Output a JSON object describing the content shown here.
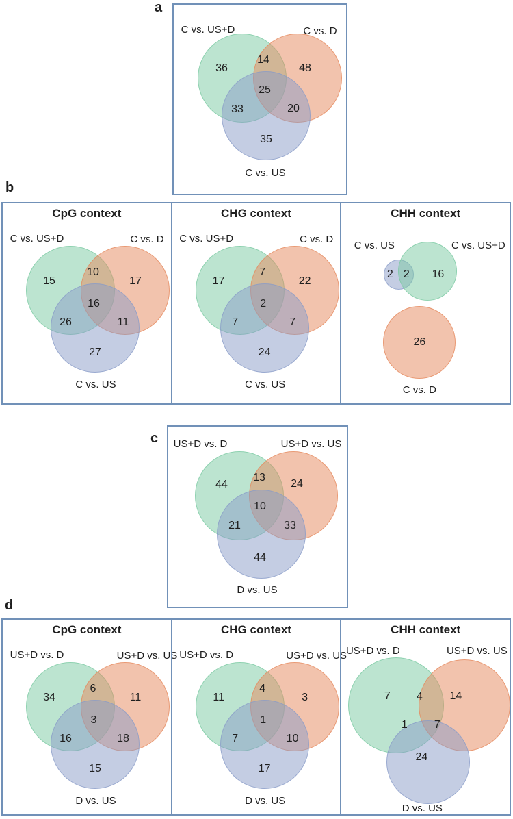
{
  "colors": {
    "green": "#79c9a1",
    "orange": "#e5875b",
    "blue": "#899bc7",
    "green_visible": "#bce4d0",
    "orange_visible": "#f2c3ad",
    "blue_visible": "#c4cde3",
    "panel_border": "#7191b8",
    "text": "#1f1f1f"
  },
  "panels": [
    {
      "tag": "a",
      "diagrams": [
        {
          "layout": "venn3_a",
          "title": "",
          "sets": [
            {
              "label": "C vs. US+D",
              "color": "green"
            },
            {
              "label": "C vs. D",
              "color": "orange"
            },
            {
              "label": "C vs. US",
              "color": "blue"
            }
          ],
          "counts": {
            "a": "36",
            "ab": "14",
            "b": "48",
            "abc": "25",
            "ac": "33",
            "bc": "20",
            "c": "35"
          }
        }
      ]
    },
    {
      "tag": "b",
      "diagrams": [
        {
          "layout": "venn3t",
          "title": "CpG context",
          "sets": [
            {
              "label": "C vs. US+D",
              "color": "green"
            },
            {
              "label": "C vs. D",
              "color": "orange"
            },
            {
              "label": "C vs. US",
              "color": "blue"
            }
          ],
          "counts": {
            "a": "15",
            "ab": "10",
            "b": "17",
            "abc": "16",
            "ac": "26",
            "bc": "11",
            "c": "27"
          }
        },
        {
          "layout": "venn3t",
          "title": "CHG context",
          "sets": [
            {
              "label": "C vs. US+D",
              "color": "green"
            },
            {
              "label": "C vs. D",
              "color": "orange"
            },
            {
              "label": "C vs. US",
              "color": "blue"
            }
          ],
          "counts": {
            "a": "17",
            "ab": "7",
            "b": "22",
            "abc": "2",
            "ac": "7",
            "bc": "7",
            "c": "24"
          }
        },
        {
          "layout": "twoPlusOne",
          "title": "CHH context",
          "sets": [
            {
              "label": "C vs. US",
              "color": "blue"
            },
            {
              "label": "C vs. US+D",
              "color": "green"
            },
            {
              "label": "C vs. D",
              "color": "orange"
            }
          ],
          "counts": {
            "a": "2",
            "ab": "2",
            "b": "16",
            "c": "26"
          }
        }
      ]
    },
    {
      "tag": "c",
      "diagrams": [
        {
          "layout": "venn3_c",
          "title": "",
          "sets": [
            {
              "label": "US+D vs. D",
              "color": "green"
            },
            {
              "label": "US+D vs. US",
              "color": "orange"
            },
            {
              "label": "D vs. US",
              "color": "blue"
            }
          ],
          "counts": {
            "a": "44",
            "ab": "13",
            "b": "24",
            "abc": "10",
            "ac": "21",
            "bc": "33",
            "c": "44"
          }
        }
      ]
    },
    {
      "tag": "d",
      "diagrams": [
        {
          "layout": "venn3t",
          "title": "CpG context",
          "sets": [
            {
              "label": "US+D vs. D",
              "color": "green"
            },
            {
              "label": "US+D vs. US",
              "color": "orange"
            },
            {
              "label": "D vs. US",
              "color": "blue"
            }
          ],
          "counts": {
            "a": "34",
            "ab": "6",
            "b": "11",
            "abc": "3",
            "ac": "16",
            "bc": "18",
            "c": "15"
          }
        },
        {
          "layout": "venn3t",
          "title": "CHG context",
          "sets": [
            {
              "label": "US+D vs. D",
              "color": "green"
            },
            {
              "label": "US+D vs. US",
              "color": "orange"
            },
            {
              "label": "D vs. US",
              "color": "blue"
            }
          ],
          "counts": {
            "a": "11",
            "ab": "4",
            "b": "3",
            "abc": "1",
            "ac": "7",
            "bc": "10",
            "c": "17"
          }
        },
        {
          "layout": "venn3wide",
          "title": "CHH context",
          "sets": [
            {
              "label": "US+D vs. D",
              "color": "green"
            },
            {
              "label": "US+D vs. US",
              "color": "orange"
            },
            {
              "label": "D vs. US",
              "color": "blue"
            }
          ],
          "counts": {
            "a": "7",
            "ab": "4",
            "b": "14",
            "ac": "1",
            "bc": "7",
            "c": "24"
          }
        }
      ]
    }
  ]
}
